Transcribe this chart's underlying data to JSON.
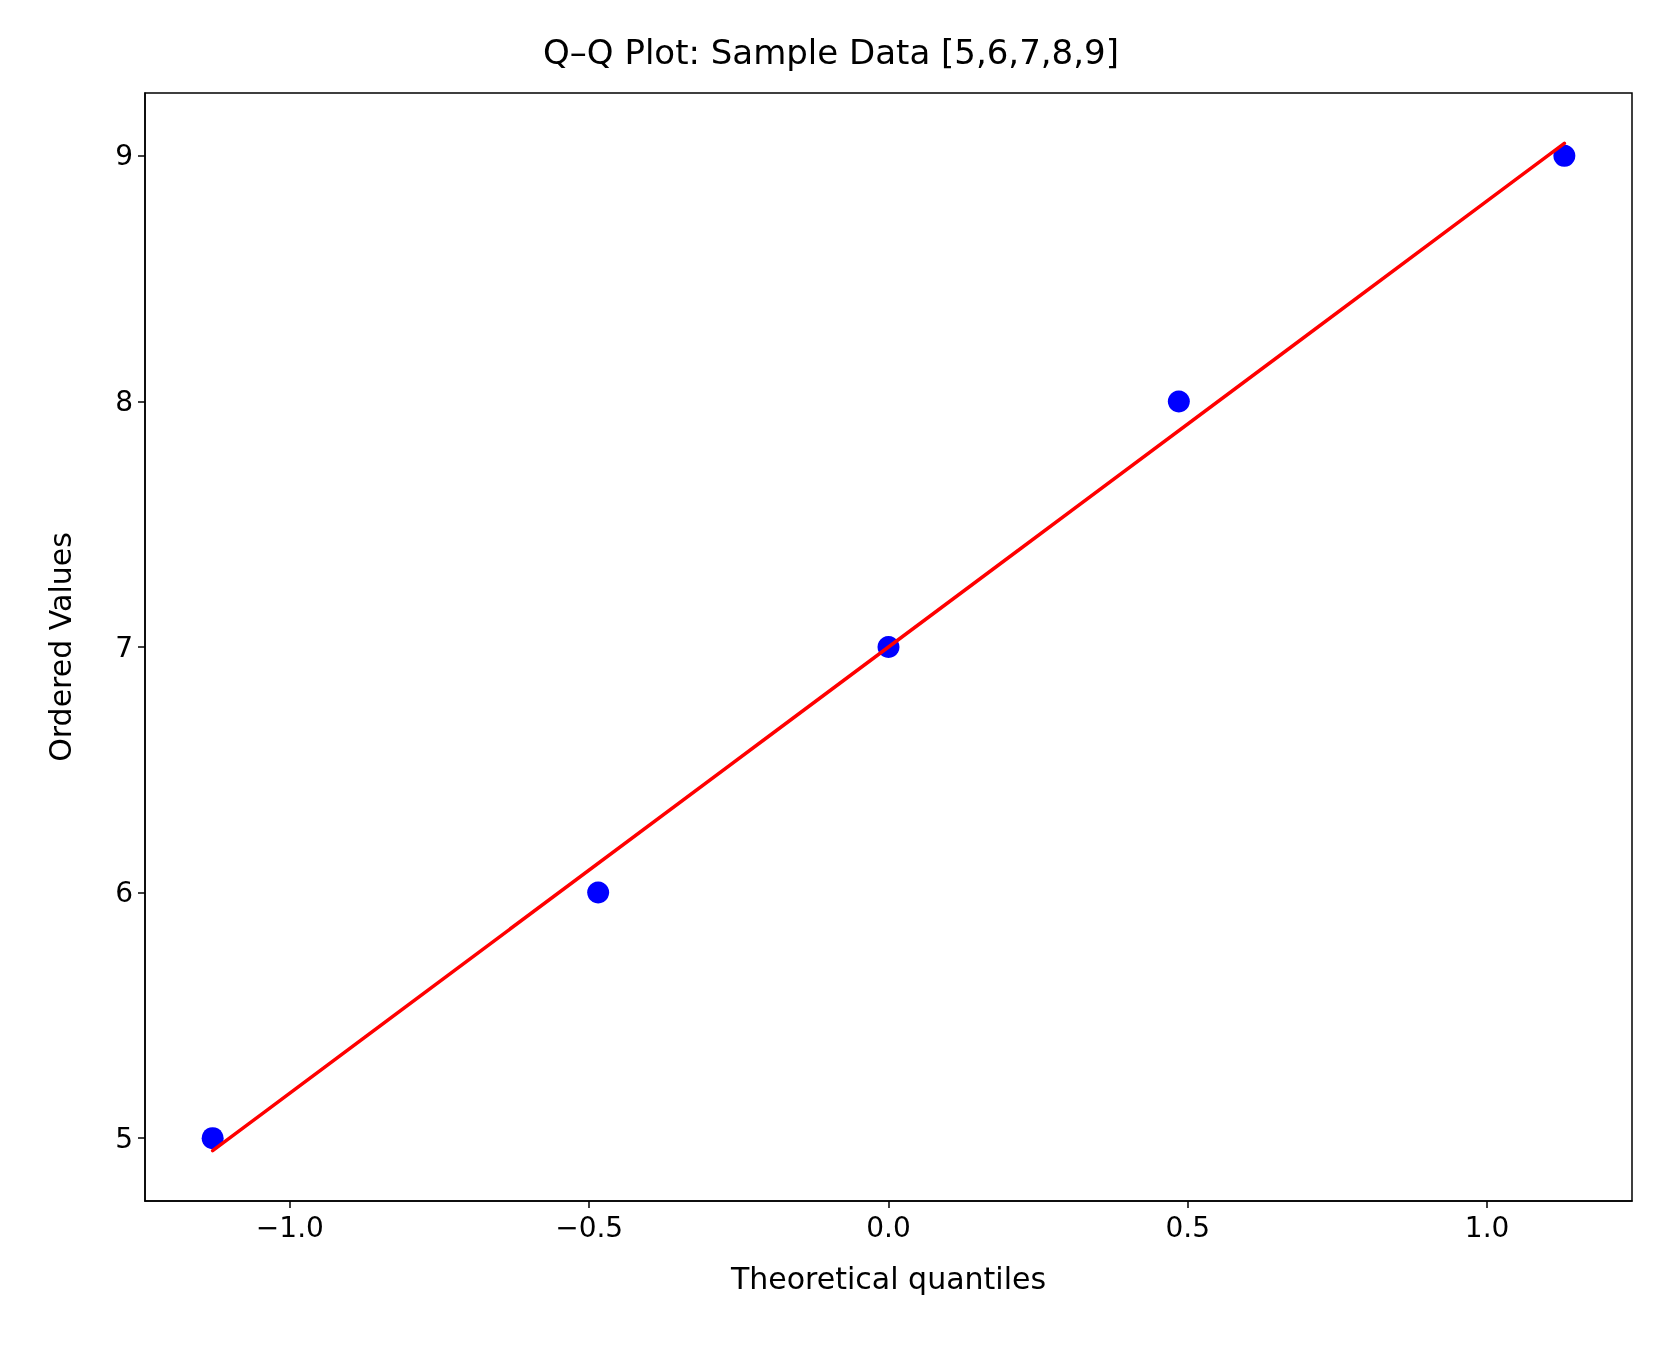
{
  "chart_data": {
    "type": "scatter",
    "title": "Q–Q Plot: Sample Data [5,6,7,8,9]",
    "xlabel": "Theoretical quantiles",
    "ylabel": "Ordered Values",
    "xlim": [
      -1.242,
      1.242
    ],
    "xticks": [
      {
        "value": -1.0,
        "label": "−1.0"
      },
      {
        "value": -0.5,
        "label": "−0.5"
      },
      {
        "value": 0.0,
        "label": "0.0"
      },
      {
        "value": 0.5,
        "label": "0.5"
      },
      {
        "value": 1.0,
        "label": "1.0"
      }
    ],
    "ylim": [
      4.744,
      9.256
    ],
    "yticks": [
      5,
      6,
      7,
      8,
      9
    ],
    "marker": "circle",
    "series": [
      {
        "color": "#0000ff",
        "x": [
          -1.129,
          -0.485,
          0,
          0.485,
          1.129
        ],
        "values": [
          5,
          6,
          7,
          8,
          9
        ]
      },
      {
        "type": "line",
        "color": "#ff0000",
        "line_style": "solid",
        "marker": "none",
        "x": [
          -1.129,
          1.129
        ],
        "values": [
          4.949,
          9.051
        ]
      }
    ]
  }
}
